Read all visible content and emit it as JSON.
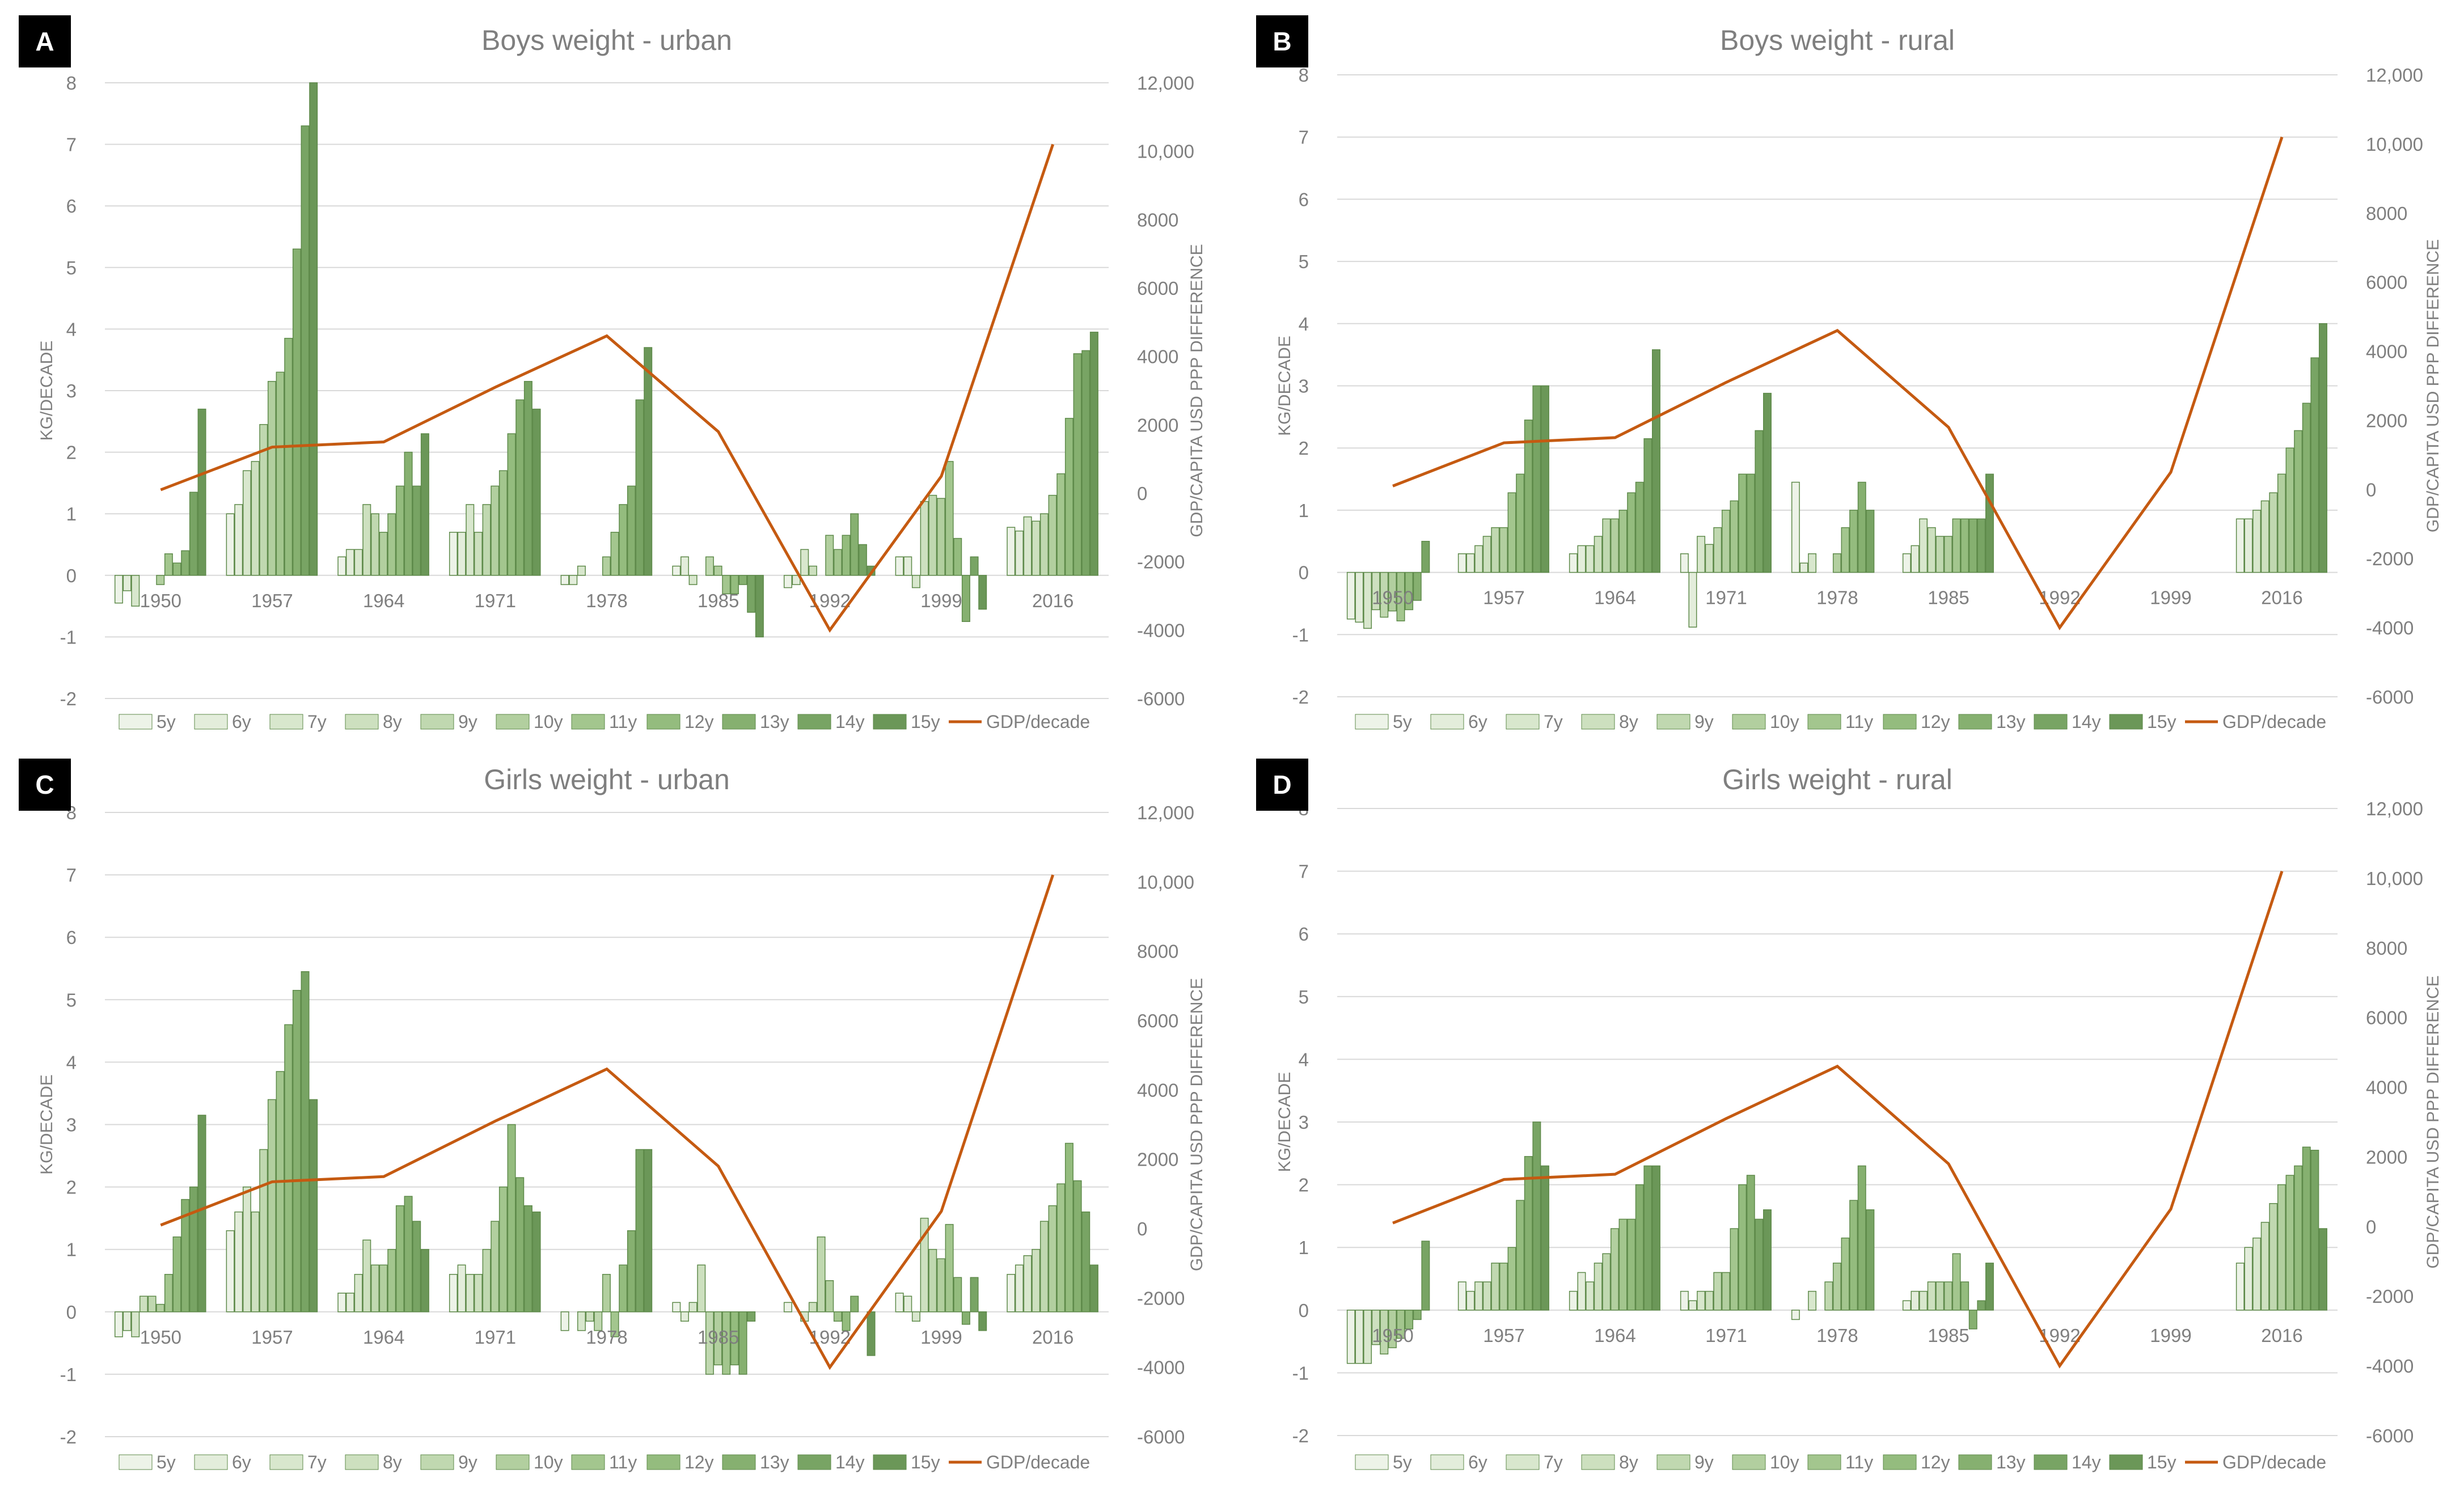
{
  "colors": {
    "gdp_line": "#c55a11",
    "grid": "#d9d9d9",
    "axis_text": "#7f7f7f",
    "title_text": "#7f7f7f",
    "bar_fills": [
      "#edf3e8",
      "#e3eddb",
      "#d8e7cd",
      "#cde0bf",
      "#c0d8b0",
      "#b2cf9f",
      "#a3c68e",
      "#94bc7e",
      "#86b070",
      "#78a464",
      "#6b9758"
    ],
    "bar_stroke": "#5e8a4a"
  },
  "legend": {
    "labels": [
      "5y",
      "6y",
      "7y",
      "8y",
      "9y",
      "10y",
      "11y",
      "12y",
      "13y",
      "14y",
      "15y",
      "GDP/decade"
    ]
  },
  "panels": [
    {
      "label": "A"
    },
    {
      "label": "B"
    },
    {
      "label": "C"
    },
    {
      "label": "D"
    }
  ],
  "chart_data": [
    {
      "type": "bar",
      "panel": "A",
      "title": "Boys weight - urban",
      "ylabel": "KG/DECADE",
      "ylabel_right": "GDP/CAPITA USD PPP DIFFERENCE",
      "ylim": [
        -2,
        8
      ],
      "y2lim": [
        -6000,
        12000
      ],
      "yticks": [
        "-2",
        "-1",
        "0",
        "1",
        "2",
        "3",
        "4",
        "5",
        "6",
        "7",
        "8"
      ],
      "y2ticks": [
        "-6000",
        "-4000",
        "-2000",
        "0",
        "2000",
        "4000",
        "6000",
        "8000",
        "10,000",
        "12,000"
      ],
      "categories": [
        "1950",
        "1957",
        "1964",
        "1971",
        "1978",
        "1985",
        "1992",
        "1999",
        "2016"
      ],
      "series_names": [
        "5y",
        "6y",
        "7y",
        "8y",
        "9y",
        "10y",
        "11y",
        "12y",
        "13y",
        "14y",
        "15y"
      ],
      "values": [
        [
          -0.45,
          -0.25,
          -0.5,
          0,
          0,
          -0.15,
          0.35,
          0.2,
          0.4,
          1.35,
          2.7
        ],
        [
          1.0,
          1.15,
          1.7,
          1.85,
          2.45,
          3.15,
          3.3,
          3.85,
          5.3,
          7.3,
          8.0
        ],
        [
          0.3,
          0.42,
          0.42,
          1.15,
          1.0,
          0.7,
          1.0,
          1.45,
          2.0,
          1.45,
          2.3
        ],
        [
          0.7,
          0.7,
          1.15,
          0.7,
          1.15,
          1.45,
          1.7,
          2.3,
          2.85,
          3.15,
          2.7
        ],
        [
          -0.15,
          -0.15,
          0.15,
          0,
          0,
          0.3,
          0.7,
          1.15,
          1.45,
          2.85,
          3.7
        ],
        [
          0.15,
          0.3,
          -0.15,
          0,
          0.3,
          0.15,
          -0.3,
          -0.3,
          -0.15,
          -0.6,
          -1.0
        ],
        [
          -0.2,
          -0.15,
          0.42,
          0.15,
          0,
          0.65,
          0.42,
          0.65,
          1.0,
          0.5,
          0.15
        ],
        [
          0.3,
          0.3,
          -0.2,
          1.2,
          1.3,
          1.25,
          1.85,
          0.6,
          -0.75,
          0.3,
          -0.55
        ],
        [
          0.78,
          0.72,
          0.95,
          0.88,
          1.0,
          1.3,
          1.65,
          2.55,
          3.6,
          3.65,
          3.95
        ]
      ],
      "gdp": [
        100,
        1350,
        1500,
        3100,
        4600,
        1800,
        -4000,
        500,
        10200
      ]
    },
    {
      "type": "bar",
      "panel": "B",
      "title": "Boys weight - rural",
      "ylabel": "KG/DECADE",
      "ylabel_right": "GDP/CAPITA USD PPP DIFFERENCE",
      "ylim": [
        -2,
        8
      ],
      "y2lim": [
        -6000,
        12000
      ],
      "yticks": [
        "-2",
        "-1",
        "0",
        "1",
        "2",
        "3",
        "4",
        "5",
        "6",
        "7",
        "8"
      ],
      "y2ticks": [
        "-6000",
        "-4000",
        "-2000",
        "0",
        "2000",
        "4000",
        "6000",
        "8000",
        "10,000",
        "12,000"
      ],
      "categories": [
        "1950",
        "1957",
        "1964",
        "1971",
        "1978",
        "1985",
        "1992",
        "1999",
        "2016"
      ],
      "series_names": [
        "5y",
        "6y",
        "7y",
        "8y",
        "9y",
        "10y",
        "11y",
        "12y",
        "13y",
        "14y",
        "15y"
      ],
      "values": [
        [
          -0.75,
          -0.8,
          -0.9,
          -0.6,
          -0.72,
          -0.62,
          -0.78,
          -0.6,
          -0.45,
          0.5,
          0
        ],
        [
          0.3,
          0.3,
          0.43,
          0.58,
          0.72,
          0.72,
          1.28,
          1.58,
          2.45,
          3.0,
          3.0
        ],
        [
          0.3,
          0.43,
          0.43,
          0.58,
          0.86,
          0.86,
          1.0,
          1.28,
          1.45,
          2.15,
          3.58
        ],
        [
          0.3,
          -0.88,
          0.58,
          0.45,
          0.72,
          1.0,
          1.15,
          1.58,
          1.58,
          2.28,
          2.88
        ],
        [
          1.45,
          0.15,
          0.3,
          0,
          0,
          0.3,
          0.72,
          1.0,
          1.45,
          1.0,
          0
        ],
        [
          0.3,
          0.43,
          0.86,
          0.72,
          0.58,
          0.58,
          0.86,
          0.86,
          0.86,
          0.86,
          1.58
        ],
        [
          0,
          0,
          0,
          0,
          0,
          0,
          0,
          0,
          0,
          0,
          0
        ],
        [
          0,
          0,
          0,
          0,
          0,
          0,
          0,
          0,
          0,
          0,
          0
        ],
        [
          0.86,
          0.86,
          1.0,
          1.15,
          1.28,
          1.58,
          2.0,
          2.28,
          2.72,
          3.45,
          4.0
        ]
      ],
      "gdp": [
        100,
        1350,
        1500,
        3100,
        4600,
        1800,
        -4000,
        500,
        10200
      ]
    },
    {
      "type": "bar",
      "panel": "C",
      "title": "Girls weight - urban",
      "ylabel": "KG/DECADE",
      "ylabel_right": "GDP/CAPITA USD PPP DIFFERENCE",
      "ylim": [
        -2,
        8
      ],
      "y2lim": [
        -6000,
        12000
      ],
      "yticks": [
        "-2",
        "-1",
        "0",
        "1",
        "2",
        "3",
        "4",
        "5",
        "6",
        "7",
        "8"
      ],
      "y2ticks": [
        "-6000",
        "-4000",
        "-2000",
        "0",
        "2000",
        "4000",
        "6000",
        "8000",
        "10,000",
        "12,000"
      ],
      "categories": [
        "1950",
        "1957",
        "1964",
        "1971",
        "1978",
        "1985",
        "1992",
        "1999",
        "2016"
      ],
      "series_names": [
        "5y",
        "6y",
        "7y",
        "8y",
        "9y",
        "10y",
        "11y",
        "12y",
        "13y",
        "14y",
        "15y"
      ],
      "values": [
        [
          -0.4,
          -0.3,
          -0.4,
          0.25,
          0.25,
          0.12,
          0.6,
          1.2,
          1.8,
          2.0,
          3.15
        ],
        [
          1.3,
          1.6,
          2.0,
          1.6,
          2.6,
          3.4,
          3.85,
          4.6,
          5.15,
          5.45,
          3.4
        ],
        [
          0.3,
          0.3,
          0.6,
          1.15,
          0.75,
          0.75,
          1.0,
          1.7,
          1.85,
          1.45,
          1.0
        ],
        [
          0.6,
          0.75,
          0.6,
          0.6,
          1.0,
          1.45,
          2.0,
          3.0,
          2.15,
          1.7,
          1.6
        ],
        [
          -0.3,
          0,
          -0.3,
          -0.15,
          -0.3,
          0.6,
          -0.4,
          0.75,
          1.3,
          2.6,
          2.6
        ],
        [
          0.15,
          -0.15,
          0.15,
          0.75,
          -1.0,
          -0.85,
          -1.0,
          -0.85,
          -1.0,
          -0.15,
          0
        ],
        [
          0.15,
          0,
          -0.15,
          0.15,
          1.2,
          0.5,
          -0.15,
          -0.3,
          0.25,
          0,
          -0.7
        ],
        [
          0.3,
          0.25,
          -0.15,
          1.5,
          1.0,
          0.85,
          1.4,
          0.55,
          -0.2,
          0.55,
          -0.3
        ],
        [
          0.6,
          0.75,
          0.9,
          1.0,
          1.45,
          1.7,
          2.05,
          2.7,
          2.1,
          1.6,
          0.75
        ]
      ],
      "gdp": [
        100,
        1350,
        1500,
        3100,
        4600,
        1800,
        -4000,
        500,
        10200
      ]
    },
    {
      "type": "bar",
      "panel": "D",
      "title": "Girls weight - rural",
      "ylabel": "KG/DECADE",
      "ylabel_right": "GDP/CAPITA USD PPP DIFFERENCE",
      "ylim": [
        -2,
        8
      ],
      "y2lim": [
        -6000,
        12000
      ],
      "yticks": [
        "-2",
        "-1",
        "0",
        "1",
        "2",
        "3",
        "4",
        "5",
        "6",
        "7",
        "8"
      ],
      "y2ticks": [
        "-6000",
        "-4000",
        "-2000",
        "0",
        "2000",
        "4000",
        "6000",
        "8000",
        "10,000",
        "12,000"
      ],
      "categories": [
        "1950",
        "1957",
        "1964",
        "1971",
        "1978",
        "1985",
        "1992",
        "1999",
        "2016"
      ],
      "series_names": [
        "5y",
        "6y",
        "7y",
        "8y",
        "9y",
        "10y",
        "11y",
        "12y",
        "13y",
        "14y",
        "15y"
      ],
      "values": [
        [
          -0.85,
          -0.85,
          -0.85,
          -0.55,
          -0.7,
          -0.6,
          -0.45,
          -0.3,
          -0.15,
          1.1,
          0
        ],
        [
          0.45,
          0.3,
          0.45,
          0.45,
          0.75,
          0.75,
          1.0,
          1.75,
          2.45,
          3.0,
          2.3
        ],
        [
          0.3,
          0.6,
          0.45,
          0.75,
          0.9,
          1.3,
          1.45,
          1.45,
          2.0,
          2.3,
          2.3
        ],
        [
          0.3,
          0.15,
          0.3,
          0.3,
          0.6,
          0.6,
          1.3,
          2.0,
          2.15,
          1.45,
          1.6
        ],
        [
          -0.15,
          0,
          0.3,
          0,
          0.45,
          0.75,
          1.15,
          1.75,
          2.3,
          1.6,
          0
        ],
        [
          0.15,
          0.3,
          0.3,
          0.45,
          0.45,
          0.45,
          0.9,
          0.45,
          -0.3,
          0.15,
          0.75
        ],
        [
          0,
          0,
          0,
          0,
          0,
          0,
          0,
          0,
          0,
          0,
          0
        ],
        [
          0,
          0,
          0,
          0,
          0,
          0,
          0,
          0,
          0,
          0,
          0
        ],
        [
          0.75,
          1.0,
          1.15,
          1.4,
          1.7,
          2.0,
          2.15,
          2.3,
          2.6,
          2.55,
          1.3
        ]
      ],
      "gdp": [
        100,
        1350,
        1500,
        3100,
        4600,
        1800,
        -4000,
        500,
        10200
      ]
    }
  ]
}
